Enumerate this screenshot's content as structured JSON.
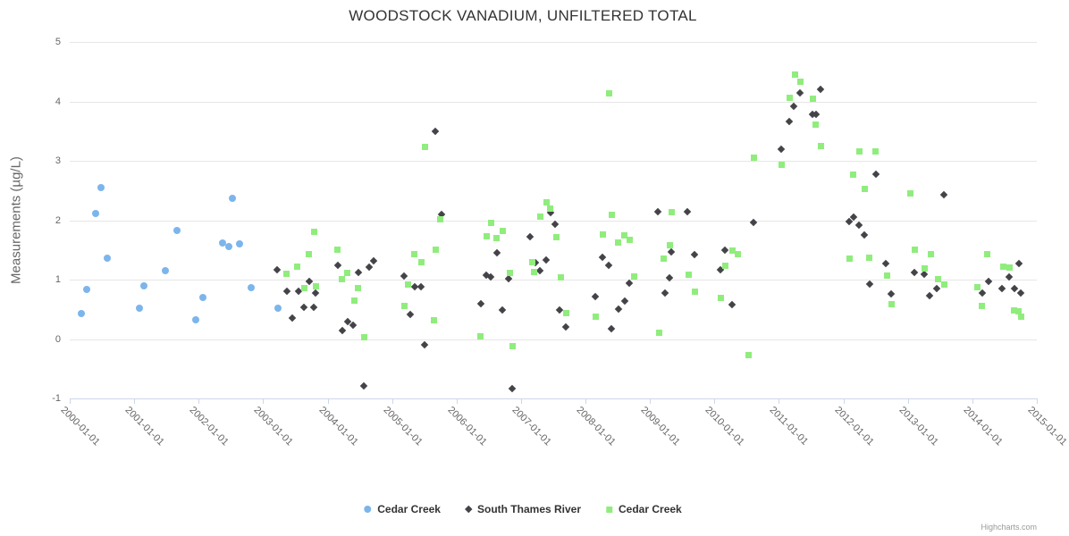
{
  "title": "WOODSTOCK VANADIUM, UNFILTERED TOTAL",
  "credits": "Highcharts.com",
  "y_axis": {
    "title": "Measurements (µg/L)",
    "ticks": [
      5,
      4,
      3,
      2,
      1,
      0,
      -1
    ],
    "min": -1,
    "max": 5
  },
  "x_axis": {
    "labels": [
      "2000-01-01",
      "2001-01-01",
      "2002-01-01",
      "2003-01-01",
      "2004-01-01",
      "2005-01-01",
      "2006-01-01",
      "2007-01-01",
      "2008-01-01",
      "2009-01-01",
      "2010-01-01",
      "2011-01-01",
      "2012-01-01",
      "2013-01-01",
      "2014-01-01",
      "2015-01-01"
    ],
    "min_year": 2000,
    "max_year": 2015
  },
  "legend": [
    {
      "label": "Cedar Creek",
      "marker": "circle",
      "color": "#7cb5ec"
    },
    {
      "label": "South Thames River",
      "marker": "diamond",
      "color": "#434348"
    },
    {
      "label": "Cedar Creek",
      "marker": "square",
      "color": "#90ed7d"
    }
  ],
  "chart_data": {
    "type": "scatter",
    "title": "WOODSTOCK VANADIUM, UNFILTERED TOTAL",
    "xlabel": "",
    "ylabel": "Measurements (µg/L)",
    "ylim": [
      -1,
      5
    ],
    "xlim_years": [
      2000,
      2015
    ],
    "grid": "horizontal",
    "legend_position": "bottom",
    "x_units": "decimal_year",
    "series": [
      {
        "name": "Cedar Creek",
        "marker": "circle",
        "color": "#7cb5ec",
        "points": [
          [
            2000.18,
            0.43
          ],
          [
            2000.27,
            0.83
          ],
          [
            2000.4,
            2.12
          ],
          [
            2000.49,
            2.55
          ],
          [
            2000.58,
            1.36
          ],
          [
            2001.08,
            0.52
          ],
          [
            2001.15,
            0.9
          ],
          [
            2001.48,
            1.15
          ],
          [
            2001.66,
            1.82
          ],
          [
            2001.96,
            0.32
          ],
          [
            2002.06,
            0.7
          ],
          [
            2002.37,
            1.62
          ],
          [
            2002.47,
            1.55
          ],
          [
            2002.53,
            2.37
          ],
          [
            2002.63,
            1.6
          ],
          [
            2002.82,
            0.87
          ],
          [
            2003.23,
            0.52
          ]
        ]
      },
      {
        "name": "South Thames River",
        "marker": "diamond",
        "color": "#434348",
        "points": [
          [
            2003.23,
            1.16
          ],
          [
            2003.38,
            0.8
          ],
          [
            2003.46,
            0.36
          ],
          [
            2003.56,
            0.8
          ],
          [
            2003.64,
            0.54
          ],
          [
            2003.73,
            0.97
          ],
          [
            2003.8,
            0.53
          ],
          [
            2003.82,
            0.78
          ],
          [
            2004.17,
            1.24
          ],
          [
            2004.24,
            0.14
          ],
          [
            2004.32,
            0.29
          ],
          [
            2004.41,
            0.23
          ],
          [
            2004.49,
            1.12
          ],
          [
            2004.58,
            -0.79
          ],
          [
            2004.66,
            1.21
          ],
          [
            2004.73,
            1.31
          ],
          [
            2005.2,
            1.06
          ],
          [
            2005.29,
            0.42
          ],
          [
            2005.36,
            0.88
          ],
          [
            2005.46,
            0.88
          ],
          [
            2005.52,
            -0.1
          ],
          [
            2005.69,
            3.49
          ],
          [
            2005.78,
            2.1
          ],
          [
            2006.39,
            0.59
          ],
          [
            2006.47,
            1.07
          ],
          [
            2006.54,
            1.04
          ],
          [
            2006.64,
            1.45
          ],
          [
            2006.72,
            0.49
          ],
          [
            2006.82,
            1.02
          ],
          [
            2006.88,
            -0.83
          ],
          [
            2007.16,
            1.72
          ],
          [
            2007.24,
            1.28
          ],
          [
            2007.31,
            1.15
          ],
          [
            2007.4,
            1.33
          ],
          [
            2007.47,
            2.13
          ],
          [
            2007.54,
            1.93
          ],
          [
            2007.61,
            0.49
          ],
          [
            2007.71,
            0.2
          ],
          [
            2008.17,
            0.71
          ],
          [
            2008.27,
            1.38
          ],
          [
            2008.37,
            1.24
          ],
          [
            2008.42,
            0.18
          ],
          [
            2008.52,
            0.5
          ],
          [
            2008.62,
            0.64
          ],
          [
            2008.69,
            0.94
          ],
          [
            2009.14,
            2.15
          ],
          [
            2009.24,
            0.78
          ],
          [
            2009.31,
            1.03
          ],
          [
            2009.35,
            1.46
          ],
          [
            2009.6,
            2.15
          ],
          [
            2009.71,
            1.42
          ],
          [
            2010.1,
            1.16
          ],
          [
            2010.18,
            1.49
          ],
          [
            2010.29,
            0.58
          ],
          [
            2010.62,
            1.96
          ],
          [
            2011.05,
            3.19
          ],
          [
            2011.17,
            3.66
          ],
          [
            2011.24,
            3.91
          ],
          [
            2011.34,
            4.15
          ],
          [
            2011.53,
            3.78
          ],
          [
            2011.59,
            3.78
          ],
          [
            2011.66,
            4.21
          ],
          [
            2012.1,
            1.97
          ],
          [
            2012.17,
            2.05
          ],
          [
            2012.26,
            1.92
          ],
          [
            2012.34,
            1.75
          ],
          [
            2012.42,
            0.92
          ],
          [
            2012.52,
            2.78
          ],
          [
            2012.67,
            1.27
          ],
          [
            2012.76,
            0.76
          ],
          [
            2013.12,
            1.12
          ],
          [
            2013.27,
            1.09
          ],
          [
            2013.35,
            0.73
          ],
          [
            2013.46,
            0.85
          ],
          [
            2013.57,
            2.43
          ],
          [
            2014.17,
            0.77
          ],
          [
            2014.27,
            0.97
          ],
          [
            2014.48,
            0.85
          ],
          [
            2014.59,
            1.04
          ],
          [
            2014.67,
            0.85
          ],
          [
            2014.74,
            1.27
          ],
          [
            2014.77,
            0.77
          ]
        ]
      },
      {
        "name": "Cedar Creek",
        "marker": "square",
        "color": "#90ed7d",
        "points": [
          [
            2003.37,
            1.11
          ],
          [
            2003.54,
            1.23
          ],
          [
            2003.64,
            0.87
          ],
          [
            2003.71,
            1.43
          ],
          [
            2003.8,
            1.81
          ],
          [
            2003.82,
            0.89
          ],
          [
            2004.16,
            1.51
          ],
          [
            2004.23,
            1.02
          ],
          [
            2004.31,
            1.12
          ],
          [
            2004.42,
            0.66
          ],
          [
            2004.48,
            0.87
          ],
          [
            2004.58,
            0.04
          ],
          [
            2005.2,
            0.57
          ],
          [
            2005.26,
            0.92
          ],
          [
            2005.35,
            1.43
          ],
          [
            2005.46,
            1.3
          ],
          [
            2005.52,
            3.24
          ],
          [
            2005.65,
            0.32
          ],
          [
            2005.69,
            1.51
          ],
          [
            2005.76,
            2.03
          ],
          [
            2006.38,
            0.06
          ],
          [
            2006.48,
            1.73
          ],
          [
            2006.54,
            1.96
          ],
          [
            2006.63,
            1.7
          ],
          [
            2006.72,
            1.83
          ],
          [
            2006.83,
            1.12
          ],
          [
            2006.88,
            -0.11
          ],
          [
            2007.18,
            1.3
          ],
          [
            2007.21,
            1.13
          ],
          [
            2007.3,
            2.07
          ],
          [
            2007.4,
            2.31
          ],
          [
            2007.46,
            2.21
          ],
          [
            2007.56,
            1.72
          ],
          [
            2007.62,
            1.04
          ],
          [
            2007.71,
            0.44
          ],
          [
            2008.16,
            0.39
          ],
          [
            2008.27,
            1.77
          ],
          [
            2008.38,
            4.15
          ],
          [
            2008.42,
            2.1
          ],
          [
            2008.51,
            1.63
          ],
          [
            2008.61,
            1.75
          ],
          [
            2008.69,
            1.68
          ],
          [
            2008.76,
            1.06
          ],
          [
            2009.15,
            0.12
          ],
          [
            2009.22,
            1.36
          ],
          [
            2009.31,
            1.59
          ],
          [
            2009.35,
            2.15
          ],
          [
            2009.61,
            1.09
          ],
          [
            2009.71,
            0.81
          ],
          [
            2010.11,
            0.7
          ],
          [
            2010.18,
            1.24
          ],
          [
            2010.29,
            1.5
          ],
          [
            2010.37,
            1.44
          ],
          [
            2010.53,
            -0.26
          ],
          [
            2010.62,
            3.06
          ],
          [
            2011.05,
            2.94
          ],
          [
            2011.17,
            4.07
          ],
          [
            2011.25,
            4.46
          ],
          [
            2011.34,
            4.34
          ],
          [
            2011.54,
            4.05
          ],
          [
            2011.58,
            3.62
          ],
          [
            2011.66,
            3.25
          ],
          [
            2012.1,
            1.36
          ],
          [
            2012.16,
            2.78
          ],
          [
            2012.26,
            3.16
          ],
          [
            2012.34,
            2.54
          ],
          [
            2012.41,
            1.38
          ],
          [
            2012.51,
            3.16
          ],
          [
            2012.68,
            1.08
          ],
          [
            2012.76,
            0.6
          ],
          [
            2013.04,
            2.46
          ],
          [
            2013.12,
            1.51
          ],
          [
            2013.27,
            1.19
          ],
          [
            2013.36,
            1.44
          ],
          [
            2013.47,
            1.02
          ],
          [
            2013.57,
            0.93
          ],
          [
            2014.08,
            0.88
          ],
          [
            2014.16,
            0.56
          ],
          [
            2014.24,
            1.43
          ],
          [
            2014.49,
            1.23
          ],
          [
            2014.58,
            1.21
          ],
          [
            2014.66,
            0.49
          ],
          [
            2014.72,
            0.47
          ],
          [
            2014.76,
            0.38
          ]
        ]
      }
    ]
  }
}
